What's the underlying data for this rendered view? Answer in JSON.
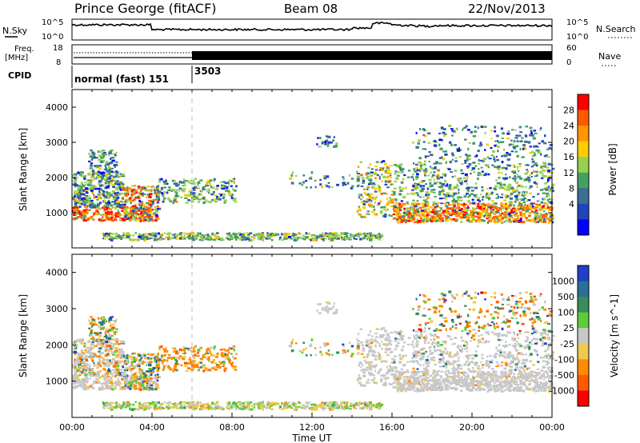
{
  "header": {
    "station": "Prince George (fitACF)",
    "beam": "Beam 08",
    "date": "22/Nov/2013"
  },
  "chart_data": [
    {
      "type": "line",
      "panel": "noise",
      "left_label": "N.Sky",
      "right_label": "N.Search",
      "yticks_left": [
        "10^5",
        "10^0"
      ],
      "yticks_right": [
        "10^5",
        "10^0"
      ]
    },
    {
      "type": "line",
      "panel": "frequency",
      "left_label_1": "Freq.",
      "left_label_2": "[MHz]",
      "right_label": "Nave",
      "yticks_left": [
        "18",
        "8"
      ],
      "yticks_right": [
        "60",
        "0"
      ]
    },
    {
      "type": "table",
      "panel": "cpid",
      "label": "CPID",
      "segments": [
        {
          "text": "normal (fast) 151",
          "start_hour": 0
        },
        {
          "text": "3503",
          "start_hour": 6
        }
      ]
    },
    {
      "type": "heatmap",
      "panel": "power",
      "ylabel": "Slant Range [km]",
      "ylim": [
        0,
        4500
      ],
      "yticks": [
        1000,
        2000,
        3000,
        4000
      ],
      "colorbar_label": "Power [dB]",
      "colorbar_ticks": [
        "28",
        "24",
        "20",
        "16",
        "12",
        "8",
        "4"
      ],
      "colorbar_colors": [
        "#ff0000",
        "#ff5a00",
        "#ff9600",
        "#ffcc00",
        "#96d250",
        "#44a060",
        "#3c6e96",
        "#2244bb",
        "#0000ff"
      ]
    },
    {
      "type": "heatmap",
      "panel": "velocity",
      "ylabel": "Slant Range [km]",
      "ylim": [
        0,
        4500
      ],
      "yticks": [
        1000,
        2000,
        3000,
        4000
      ],
      "colorbar_label": "Velocity [m s^-1]",
      "colorbar_ticks": [
        "1000",
        "500",
        "100",
        "25",
        "-25",
        "-100",
        "-500",
        "-1000"
      ],
      "colorbar_colors": [
        "#2040c8",
        "#2a6e9a",
        "#3a8c5a",
        "#5ccc3a",
        "#c8c8c8",
        "#f0c850",
        "#ff8c00",
        "#ff5a00",
        "#ff0000"
      ],
      "xlabel": "Time UT",
      "xticks": [
        "00:00",
        "04:00",
        "08:00",
        "12:00",
        "16:00",
        "20:00",
        "00:00"
      ]
    }
  ]
}
